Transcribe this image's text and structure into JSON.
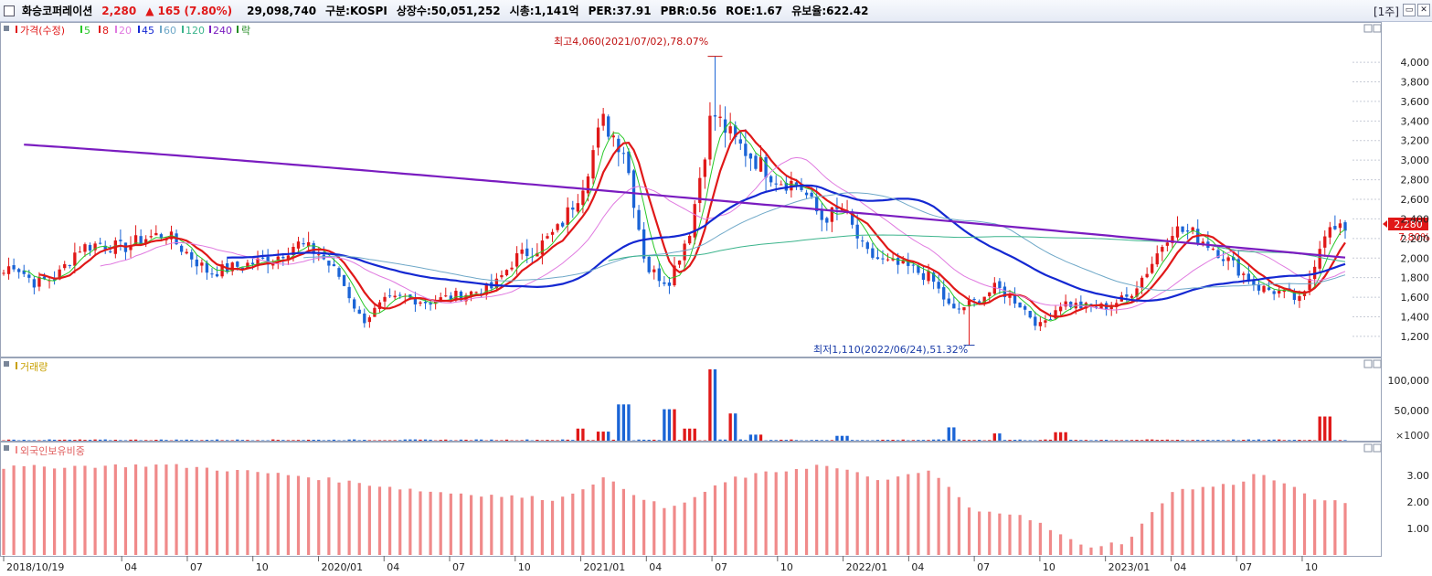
{
  "header": {
    "stock_name": "화승코퍼레이션",
    "price": "2,280",
    "change_arrow": "▲",
    "change": "165",
    "change_pct": "(7.80%)",
    "volume": "29,098,740",
    "market": "구분:KOSPI",
    "shares": "상장수:50,051,252",
    "market_cap": "시총:1,141억",
    "per": "PER:37.91",
    "pbr": "PBR:0.56",
    "roe": "ROE:1.67",
    "reserve": "유보율:622.42",
    "period": "[1주]"
  },
  "colors": {
    "price_up": "#e01818",
    "price_down": "#1a64d6",
    "ma5": "#28c828",
    "ma8": "#e01818",
    "ma20": "#e07ae0",
    "ma45": "#1428d2",
    "ma60": "#6fa8c8",
    "ma120": "#3cb48c",
    "ma240": "#7a1cc0",
    "foreign": "#f08a8a",
    "bg": "#ffffff"
  },
  "legend": {
    "price": "가격(수정)",
    "ma5": "5",
    "ma8": "8",
    "ma20": "20",
    "ma45": "45",
    "ma60": "60",
    "ma120": "120",
    "ma240": "240",
    "fall": "락",
    "volume": "거래량",
    "foreign": "외국인보유비중"
  },
  "annotations": {
    "high": "최고4,060(2021/07/02),78.07%",
    "low": "최저1,110(2022/06/24),51.32%"
  },
  "current_label": {
    "price": "2,280",
    "pct": "7.80%"
  },
  "vol_unit": "×1000",
  "chart_data": [
    {
      "type": "candlestick",
      "panel": "price",
      "y_ticks": [
        1200,
        1400,
        1600,
        1800,
        2000,
        2200,
        2400,
        2600,
        2800,
        3000,
        3200,
        3400,
        3600,
        3800,
        4000
      ],
      "ylim": [
        1050,
        4150
      ],
      "x_labels": [
        "2018/10/19",
        "04",
        "07",
        "10",
        "2020/01",
        "04",
        "07",
        "10",
        "2021/01",
        "04",
        "07",
        "10",
        "2022/01",
        "04",
        "07",
        "10",
        "2023/01",
        "04",
        "07",
        "10"
      ],
      "keypoints": [
        [
          "2018/10/19",
          1850
        ],
        [
          "2018/11",
          1950
        ],
        [
          "2018/12",
          1750
        ],
        [
          "2019/01",
          1800
        ],
        [
          "2019/02",
          2100
        ],
        [
          "2019/03",
          2150
        ],
        [
          "2019/04",
          2100
        ],
        [
          "2019/05",
          2200
        ],
        [
          "2019/06",
          2250
        ],
        [
          "2019/07",
          2050
        ],
        [
          "2019/08",
          1850
        ],
        [
          "2019/09",
          1900
        ],
        [
          "2019/10",
          1950
        ],
        [
          "2019/11",
          2000
        ],
        [
          "2019/12",
          2150
        ],
        [
          "2020/01",
          2050
        ],
        [
          "2020/02",
          1800
        ],
        [
          "2020/03",
          1350
        ],
        [
          "2020/04",
          1550
        ],
        [
          "2020/05",
          1600
        ],
        [
          "2020/06",
          1550
        ],
        [
          "2020/07",
          1600
        ],
        [
          "2020/08",
          1650
        ],
        [
          "2020/09",
          1700
        ],
        [
          "2020/10",
          2000
        ],
        [
          "2020/11",
          2100
        ],
        [
          "2020/12",
          2300
        ],
        [
          "2021/01",
          2700
        ],
        [
          "2021/02",
          3400
        ],
        [
          "2021/03",
          3100
        ],
        [
          "2021/04",
          1900
        ],
        [
          "2021/05",
          1750
        ],
        [
          "2021/06",
          2300
        ],
        [
          "2021/07",
          3500
        ],
        [
          "2021/08",
          3200
        ],
        [
          "2021/09",
          3000
        ],
        [
          "2021/10",
          2800
        ],
        [
          "2021/11",
          2750
        ],
        [
          "2021/12",
          2400
        ],
        [
          "2022/01",
          2500
        ],
        [
          "2022/02",
          2050
        ],
        [
          "2022/03",
          1950
        ],
        [
          "2022/04",
          1900
        ],
        [
          "2022/05",
          1800
        ],
        [
          "2022/06",
          1450
        ],
        [
          "2022/07",
          1550
        ],
        [
          "2022/08",
          1700
        ],
        [
          "2022/09",
          1550
        ],
        [
          "2022/10",
          1300
        ],
        [
          "2022/11",
          1550
        ],
        [
          "2022/12",
          1500
        ],
        [
          "2023/01",
          1500
        ],
        [
          "2023/02",
          1600
        ],
        [
          "2023/03",
          1900
        ],
        [
          "2023/04",
          2300
        ],
        [
          "2023/05",
          2250
        ],
        [
          "2023/06",
          2100
        ],
        [
          "2023/07",
          1900
        ],
        [
          "2023/08",
          1700
        ],
        [
          "2023/09",
          1650
        ],
        [
          "2023/10",
          1550
        ],
        [
          "2023/11",
          2280
        ]
      ],
      "high": {
        "date": "2021/07/02",
        "value": 4060,
        "pct": 78.07
      },
      "low": {
        "date": "2022/06/24",
        "value": 1110,
        "pct": 51.32
      },
      "last": 2280
    },
    {
      "type": "bar",
      "panel": "volume",
      "unit": "×1000",
      "y_ticks": [
        50000,
        100000
      ],
      "ylim": [
        0,
        130000
      ],
      "spikes": [
        [
          "2021/01",
          20000
        ],
        [
          "2021/02",
          15000
        ],
        [
          "2021/03",
          60000
        ],
        [
          "2021/05",
          52000
        ],
        [
          "2021/06",
          20000
        ],
        [
          "2021/07",
          118000
        ],
        [
          "2021/08",
          45000
        ],
        [
          "2021/09",
          10000
        ],
        [
          "2022/01",
          8000
        ],
        [
          "2022/06",
          22000
        ],
        [
          "2022/08",
          12000
        ],
        [
          "2022/11",
          14000
        ],
        [
          "2023/11",
          40000
        ]
      ]
    },
    {
      "type": "bar",
      "panel": "foreign",
      "y_ticks": [
        1.0,
        2.0,
        3.0
      ],
      "ylim": [
        0,
        3.9
      ],
      "keypoints": [
        [
          "2018/10",
          3.3
        ],
        [
          "2019/06",
          3.4
        ],
        [
          "2019/12",
          3.0
        ],
        [
          "2020/06",
          2.4
        ],
        [
          "2020/12",
          2.1
        ],
        [
          "2021/02",
          2.9
        ],
        [
          "2021/05",
          1.7
        ],
        [
          "2021/08",
          2.9
        ],
        [
          "2021/12",
          3.4
        ],
        [
          "2022/03",
          2.8
        ],
        [
          "2022/05",
          3.2
        ],
        [
          "2022/07",
          1.6
        ],
        [
          "2022/09",
          1.6
        ],
        [
          "2022/12",
          0.3
        ],
        [
          "2023/02",
          0.5
        ],
        [
          "2023/04",
          2.4
        ],
        [
          "2023/07",
          2.7
        ],
        [
          "2023/08",
          3.1
        ],
        [
          "2023/11",
          2.0
        ]
      ]
    }
  ]
}
